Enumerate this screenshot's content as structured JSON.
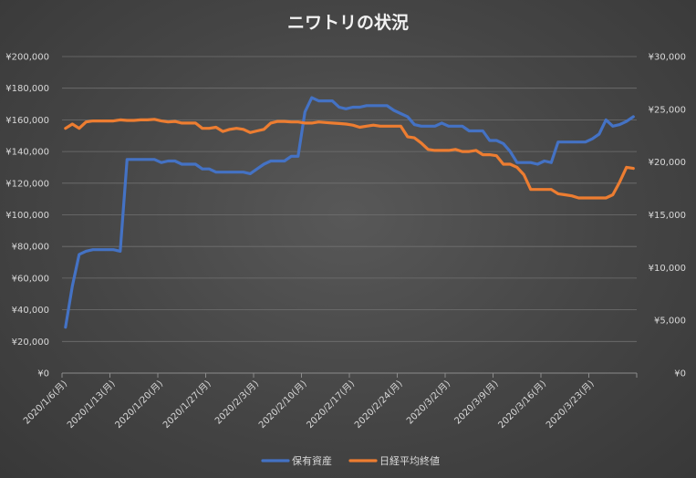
{
  "chart_data": {
    "type": "line",
    "title": "ニワトリの状況",
    "xlabel": "",
    "ylabel": "",
    "ylim": [
      0,
      200000
    ],
    "y2lim": [
      0,
      30000
    ],
    "grid": true,
    "legend_position": "bottom",
    "x_ticks": [
      "2020/1/6(月)",
      "2020/1/13(月)",
      "2020/1/20(月)",
      "2020/1/27(月)",
      "2020/2/3(月)",
      "2020/2/10(月)",
      "2020/2/17(月)",
      "2020/2/24(月)",
      "2020/3/2(月)",
      "2020/3/9(月)",
      "2020/3/16(月)",
      "2020/3/23(月)"
    ],
    "y_ticks_left": [
      "¥0",
      "¥20,000",
      "¥40,000",
      "¥60,000",
      "¥80,000",
      "¥100,000",
      "¥120,000",
      "¥140,000",
      "¥160,000",
      "¥180,000",
      "¥200,000"
    ],
    "y_ticks_right": [
      "¥0",
      "¥5,000",
      "¥10,000",
      "¥15,000",
      "¥20,000",
      "¥25,000",
      "¥30,000"
    ],
    "x_start": "2020-01-06",
    "series": [
      {
        "name": "保有資産",
        "axis": "left",
        "color": "#4472c4",
        "x": [
          "2020-01-06",
          "2020-01-07",
          "2020-01-08",
          "2020-01-09",
          "2020-01-10",
          "2020-01-11",
          "2020-01-12",
          "2020-01-13",
          "2020-01-14",
          "2020-01-15",
          "2020-01-16",
          "2020-01-17",
          "2020-01-18",
          "2020-01-19",
          "2020-01-20",
          "2020-01-21",
          "2020-01-22",
          "2020-01-23",
          "2020-01-24",
          "2020-01-25",
          "2020-01-26",
          "2020-01-27",
          "2020-01-28",
          "2020-01-29",
          "2020-01-30",
          "2020-01-31",
          "2020-02-01",
          "2020-02-02",
          "2020-02-03",
          "2020-02-04",
          "2020-02-05",
          "2020-02-06",
          "2020-02-07",
          "2020-02-08",
          "2020-02-09",
          "2020-02-10",
          "2020-02-11",
          "2020-02-12",
          "2020-02-13",
          "2020-02-14",
          "2020-02-15",
          "2020-02-16",
          "2020-02-17",
          "2020-02-18",
          "2020-02-19",
          "2020-02-20",
          "2020-02-21",
          "2020-02-22",
          "2020-02-23",
          "2020-02-24",
          "2020-02-25",
          "2020-02-26",
          "2020-02-27",
          "2020-02-28",
          "2020-02-29",
          "2020-03-01",
          "2020-03-02",
          "2020-03-03",
          "2020-03-04",
          "2020-03-05",
          "2020-03-06",
          "2020-03-07",
          "2020-03-08",
          "2020-03-09",
          "2020-03-10",
          "2020-03-11",
          "2020-03-12",
          "2020-03-13",
          "2020-03-14",
          "2020-03-15",
          "2020-03-16",
          "2020-03-17",
          "2020-03-18",
          "2020-03-19",
          "2020-03-20",
          "2020-03-21",
          "2020-03-22",
          "2020-03-23",
          "2020-03-24",
          "2020-03-25",
          "2020-03-26",
          "2020-03-27",
          "2020-03-28",
          "2020-03-29"
        ],
        "values": [
          29000,
          55000,
          75000,
          77000,
          78000,
          78000,
          78000,
          78000,
          77000,
          135000,
          135000,
          135000,
          135000,
          135000,
          133000,
          134000,
          134000,
          132000,
          132000,
          132000,
          129000,
          129000,
          127000,
          127000,
          127000,
          127000,
          127000,
          126000,
          129000,
          132000,
          134000,
          134000,
          134000,
          137000,
          137000,
          165000,
          174000,
          172000,
          172000,
          172000,
          168000,
          167000,
          168000,
          168000,
          169000,
          169000,
          169000,
          169000,
          166000,
          164000,
          162000,
          157000,
          156000,
          156000,
          156000,
          158000,
          156000,
          156000,
          156000,
          153000,
          153000,
          153000,
          147000,
          147000,
          145000,
          140000,
          133000,
          133000,
          133000,
          132000,
          134000,
          133000,
          146000,
          146000,
          146000,
          146000,
          146000,
          148000,
          151000,
          160000,
          156000,
          157000,
          159000,
          162000
        ]
      },
      {
        "name": "日経平均終値",
        "axis": "right",
        "color": "#ed7d31",
        "x": [
          "2020-01-06",
          "2020-01-07",
          "2020-01-08",
          "2020-01-09",
          "2020-01-10",
          "2020-01-11",
          "2020-01-12",
          "2020-01-13",
          "2020-01-14",
          "2020-01-15",
          "2020-01-16",
          "2020-01-17",
          "2020-01-18",
          "2020-01-19",
          "2020-01-20",
          "2020-01-21",
          "2020-01-22",
          "2020-01-23",
          "2020-01-24",
          "2020-01-25",
          "2020-01-26",
          "2020-01-27",
          "2020-01-28",
          "2020-01-29",
          "2020-01-30",
          "2020-01-31",
          "2020-02-01",
          "2020-02-02",
          "2020-02-03",
          "2020-02-04",
          "2020-02-05",
          "2020-02-06",
          "2020-02-07",
          "2020-02-08",
          "2020-02-09",
          "2020-02-10",
          "2020-02-11",
          "2020-02-12",
          "2020-02-13",
          "2020-02-14",
          "2020-02-15",
          "2020-02-16",
          "2020-02-17",
          "2020-02-18",
          "2020-02-19",
          "2020-02-20",
          "2020-02-21",
          "2020-02-22",
          "2020-02-23",
          "2020-02-24",
          "2020-02-25",
          "2020-02-26",
          "2020-02-27",
          "2020-02-28",
          "2020-02-29",
          "2020-03-01",
          "2020-03-02",
          "2020-03-03",
          "2020-03-04",
          "2020-03-05",
          "2020-03-06",
          "2020-03-07",
          "2020-03-08",
          "2020-03-09",
          "2020-03-10",
          "2020-03-11",
          "2020-03-12",
          "2020-03-13",
          "2020-03-14",
          "2020-03-15",
          "2020-03-16",
          "2020-03-17",
          "2020-03-18",
          "2020-03-19",
          "2020-03-20",
          "2020-03-21",
          "2020-03-22",
          "2020-03-23",
          "2020-03-24",
          "2020-03-25",
          "2020-03-26",
          "2020-03-27",
          "2020-03-28",
          "2020-03-29"
        ],
        "values": [
          23200,
          23600,
          23200,
          23800,
          23900,
          23900,
          23900,
          23900,
          24000,
          23950,
          23950,
          24000,
          24000,
          24050,
          23900,
          23800,
          23850,
          23700,
          23700,
          23700,
          23200,
          23200,
          23300,
          22900,
          23100,
          23200,
          23100,
          22800,
          22950,
          23100,
          23700,
          23850,
          23850,
          23800,
          23800,
          23700,
          23700,
          23800,
          23750,
          23700,
          23650,
          23600,
          23500,
          23300,
          23400,
          23500,
          23400,
          23400,
          23400,
          23400,
          22400,
          22300,
          21800,
          21200,
          21100,
          21100,
          21100,
          21200,
          21000,
          21000,
          21100,
          20700,
          20700,
          20600,
          19800,
          19800,
          19500,
          18800,
          17400,
          17400,
          17400,
          17400,
          17000,
          16900,
          16800,
          16600,
          16600,
          16600,
          16600,
          16600,
          16900,
          18100,
          19500,
          19400
        ]
      }
    ]
  }
}
